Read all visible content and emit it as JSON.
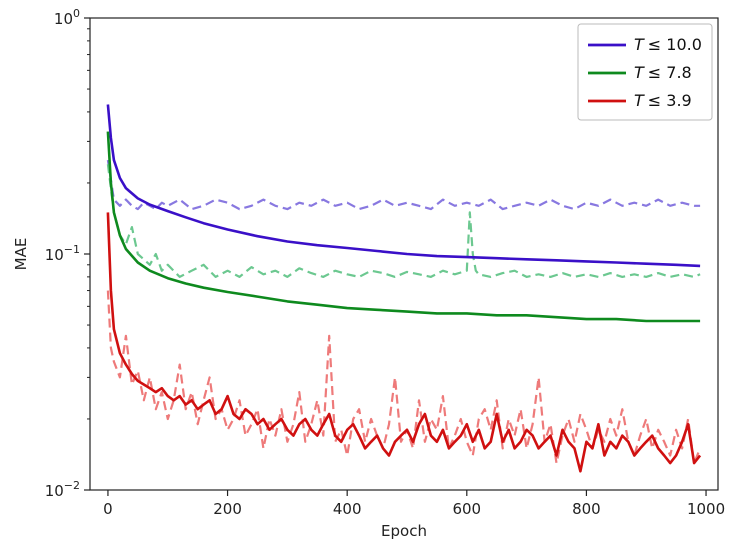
{
  "chart_data": {
    "type": "line",
    "xlabel": "Epoch",
    "ylabel": "MAE",
    "xlim": [
      -30,
      1020
    ],
    "ylim": [
      0.01,
      1.0
    ],
    "yscale": "log",
    "xticks": [
      0,
      200,
      400,
      600,
      800,
      1000
    ],
    "xtick_labels": [
      "0",
      "200",
      "400",
      "600",
      "800",
      "1000"
    ],
    "yticks": [
      0.01,
      0.1,
      1.0
    ],
    "ytick_labels": [
      {
        "base": "10",
        "exp": "−2"
      },
      {
        "base": "10",
        "exp": "−1"
      },
      {
        "base": "10",
        "exp": "0"
      }
    ],
    "legend_position": "top-right",
    "grid": false,
    "series": [
      {
        "name": "T ≤ 10.0",
        "legend_prefix": "T",
        "legend_suffix": "≤ 10.0",
        "color": "#3a10c8",
        "style": "solid",
        "x": [
          0,
          5,
          10,
          20,
          30,
          50,
          70,
          100,
          130,
          160,
          200,
          250,
          300,
          350,
          400,
          450,
          500,
          550,
          600,
          650,
          700,
          750,
          800,
          850,
          900,
          950,
          990
        ],
        "y": [
          0.43,
          0.31,
          0.25,
          0.21,
          0.19,
          0.172,
          0.162,
          0.152,
          0.143,
          0.135,
          0.127,
          0.119,
          0.113,
          0.109,
          0.106,
          0.103,
          0.1,
          0.098,
          0.097,
          0.096,
          0.095,
          0.094,
          0.093,
          0.092,
          0.091,
          0.09,
          0.089
        ]
      },
      {
        "name": "T ≤ 7.8",
        "legend_prefix": "T",
        "legend_suffix": "≤ 7.8",
        "color": "#0e8a1e",
        "style": "solid",
        "x": [
          0,
          5,
          10,
          20,
          30,
          50,
          70,
          100,
          130,
          160,
          200,
          250,
          300,
          350,
          400,
          450,
          500,
          550,
          600,
          650,
          700,
          750,
          800,
          850,
          900,
          950,
          990
        ],
        "y": [
          0.33,
          0.2,
          0.15,
          0.12,
          0.105,
          0.092,
          0.085,
          0.079,
          0.075,
          0.072,
          0.069,
          0.066,
          0.063,
          0.061,
          0.059,
          0.058,
          0.057,
          0.056,
          0.056,
          0.055,
          0.055,
          0.054,
          0.053,
          0.053,
          0.052,
          0.052,
          0.052
        ]
      },
      {
        "name": "T ≤ 3.9",
        "legend_prefix": "T",
        "legend_suffix": "≤ 3.9",
        "color": "#d01010",
        "style": "solid",
        "x": [
          0,
          5,
          10,
          20,
          30,
          40,
          50,
          60,
          70,
          80,
          90,
          100,
          110,
          120,
          130,
          140,
          150,
          160,
          170,
          180,
          190,
          200,
          210,
          220,
          230,
          240,
          250,
          260,
          270,
          280,
          290,
          300,
          310,
          320,
          330,
          340,
          350,
          360,
          370,
          380,
          390,
          400,
          410,
          420,
          430,
          440,
          450,
          460,
          470,
          480,
          490,
          500,
          510,
          520,
          530,
          540,
          550,
          560,
          570,
          580,
          590,
          600,
          610,
          620,
          630,
          640,
          650,
          660,
          670,
          680,
          690,
          700,
          710,
          720,
          730,
          740,
          750,
          760,
          770,
          780,
          790,
          800,
          810,
          820,
          830,
          840,
          850,
          860,
          870,
          880,
          890,
          900,
          910,
          920,
          930,
          940,
          950,
          960,
          970,
          980,
          990
        ],
        "y": [
          0.15,
          0.07,
          0.048,
          0.038,
          0.034,
          0.031,
          0.029,
          0.028,
          0.027,
          0.026,
          0.027,
          0.025,
          0.024,
          0.025,
          0.023,
          0.024,
          0.022,
          0.023,
          0.024,
          0.021,
          0.022,
          0.025,
          0.021,
          0.02,
          0.022,
          0.021,
          0.019,
          0.02,
          0.018,
          0.019,
          0.02,
          0.018,
          0.017,
          0.019,
          0.02,
          0.018,
          0.017,
          0.019,
          0.021,
          0.017,
          0.016,
          0.018,
          0.019,
          0.017,
          0.015,
          0.016,
          0.017,
          0.015,
          0.014,
          0.016,
          0.017,
          0.018,
          0.016,
          0.019,
          0.021,
          0.017,
          0.016,
          0.018,
          0.015,
          0.016,
          0.017,
          0.019,
          0.016,
          0.018,
          0.015,
          0.016,
          0.021,
          0.016,
          0.018,
          0.015,
          0.016,
          0.018,
          0.017,
          0.015,
          0.016,
          0.017,
          0.014,
          0.018,
          0.016,
          0.015,
          0.012,
          0.016,
          0.015,
          0.019,
          0.014,
          0.016,
          0.015,
          0.017,
          0.016,
          0.014,
          0.015,
          0.016,
          0.017,
          0.015,
          0.014,
          0.013,
          0.014,
          0.016,
          0.019,
          0.013,
          0.014
        ]
      },
      {
        "color": "#8878e0",
        "style": "dashed",
        "x": [
          0,
          10,
          20,
          30,
          40,
          50,
          60,
          70,
          80,
          90,
          100,
          120,
          140,
          160,
          180,
          200,
          220,
          240,
          260,
          280,
          300,
          320,
          340,
          360,
          380,
          400,
          420,
          440,
          460,
          480,
          500,
          520,
          540,
          560,
          580,
          600,
          620,
          640,
          660,
          680,
          700,
          720,
          740,
          760,
          780,
          800,
          820,
          840,
          860,
          880,
          900,
          920,
          940,
          960,
          980,
          990
        ],
        "y": [
          0.25,
          0.17,
          0.16,
          0.17,
          0.16,
          0.155,
          0.165,
          0.16,
          0.155,
          0.165,
          0.16,
          0.17,
          0.155,
          0.16,
          0.17,
          0.165,
          0.155,
          0.16,
          0.17,
          0.16,
          0.155,
          0.165,
          0.16,
          0.17,
          0.16,
          0.165,
          0.155,
          0.16,
          0.17,
          0.16,
          0.165,
          0.16,
          0.155,
          0.17,
          0.16,
          0.165,
          0.16,
          0.17,
          0.155,
          0.16,
          0.165,
          0.16,
          0.17,
          0.16,
          0.155,
          0.165,
          0.16,
          0.17,
          0.16,
          0.165,
          0.16,
          0.17,
          0.16,
          0.165,
          0.16,
          0.16
        ]
      },
      {
        "color": "#6cc890",
        "style": "dashed",
        "x": [
          0,
          10,
          20,
          30,
          40,
          50,
          60,
          70,
          80,
          90,
          100,
          120,
          140,
          160,
          180,
          200,
          220,
          240,
          260,
          280,
          300,
          320,
          340,
          360,
          380,
          400,
          420,
          440,
          460,
          480,
          500,
          520,
          540,
          560,
          580,
          600,
          605,
          610,
          615,
          620,
          640,
          660,
          680,
          700,
          720,
          740,
          760,
          780,
          800,
          820,
          840,
          860,
          880,
          900,
          920,
          940,
          960,
          980,
          990
        ],
        "y": [
          0.24,
          0.15,
          0.12,
          0.11,
          0.13,
          0.1,
          0.095,
          0.09,
          0.1,
          0.085,
          0.09,
          0.08,
          0.085,
          0.09,
          0.08,
          0.085,
          0.08,
          0.088,
          0.082,
          0.085,
          0.08,
          0.087,
          0.083,
          0.08,
          0.085,
          0.082,
          0.08,
          0.085,
          0.083,
          0.08,
          0.084,
          0.082,
          0.08,
          0.085,
          0.082,
          0.085,
          0.15,
          0.1,
          0.085,
          0.082,
          0.08,
          0.083,
          0.085,
          0.08,
          0.082,
          0.08,
          0.083,
          0.08,
          0.082,
          0.08,
          0.083,
          0.08,
          0.082,
          0.08,
          0.083,
          0.08,
          0.082,
          0.08,
          0.082
        ]
      },
      {
        "color": "#ee7a7a",
        "style": "dashed",
        "x": [
          0,
          5,
          10,
          20,
          30,
          40,
          50,
          60,
          70,
          80,
          90,
          100,
          110,
          120,
          130,
          140,
          150,
          160,
          170,
          180,
          190,
          200,
          210,
          220,
          230,
          240,
          250,
          260,
          270,
          280,
          290,
          300,
          310,
          320,
          330,
          340,
          350,
          360,
          370,
          380,
          390,
          400,
          410,
          420,
          430,
          440,
          450,
          460,
          470,
          480,
          490,
          500,
          510,
          520,
          530,
          540,
          550,
          560,
          570,
          580,
          590,
          600,
          610,
          620,
          630,
          640,
          650,
          660,
          670,
          680,
          690,
          700,
          710,
          720,
          730,
          740,
          750,
          760,
          770,
          780,
          790,
          800,
          810,
          820,
          830,
          840,
          850,
          860,
          870,
          880,
          890,
          900,
          910,
          920,
          930,
          940,
          950,
          960,
          970,
          980,
          990
        ],
        "y": [
          0.07,
          0.04,
          0.035,
          0.03,
          0.045,
          0.028,
          0.032,
          0.024,
          0.03,
          0.022,
          0.026,
          0.02,
          0.024,
          0.034,
          0.022,
          0.026,
          0.019,
          0.024,
          0.03,
          0.02,
          0.022,
          0.018,
          0.02,
          0.024,
          0.017,
          0.019,
          0.022,
          0.015,
          0.02,
          0.017,
          0.022,
          0.016,
          0.019,
          0.026,
          0.016,
          0.019,
          0.024,
          0.017,
          0.045,
          0.016,
          0.018,
          0.014,
          0.02,
          0.022,
          0.016,
          0.02,
          0.017,
          0.015,
          0.019,
          0.03,
          0.016,
          0.018,
          0.015,
          0.024,
          0.016,
          0.02,
          0.018,
          0.025,
          0.015,
          0.017,
          0.02,
          0.016,
          0.014,
          0.02,
          0.022,
          0.018,
          0.024,
          0.015,
          0.02,
          0.017,
          0.022,
          0.015,
          0.019,
          0.03,
          0.016,
          0.019,
          0.013,
          0.017,
          0.02,
          0.016,
          0.021,
          0.018,
          0.015,
          0.018,
          0.016,
          0.02,
          0.017,
          0.022,
          0.016,
          0.014,
          0.017,
          0.02,
          0.015,
          0.018,
          0.016,
          0.014,
          0.018,
          0.015,
          0.02,
          0.013,
          0.015
        ]
      }
    ]
  }
}
